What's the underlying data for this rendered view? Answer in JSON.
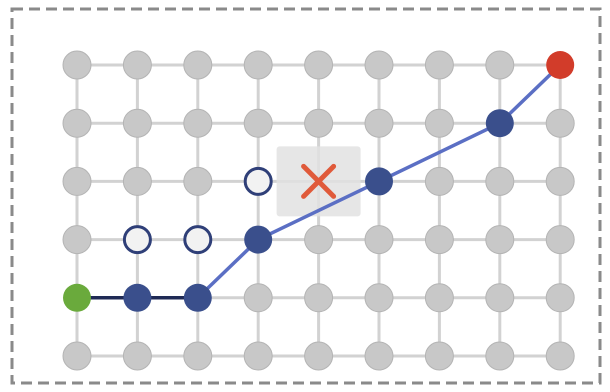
{
  "grid": {
    "columns": 9,
    "rows": 6
  },
  "colors": {
    "node_default": "#c8c8c8",
    "node_default_stroke": "#b4b4b4",
    "edge_default": "#d2d2d2",
    "path_node": "#3a4f8c",
    "path_edge": "#5b6fc4",
    "start_node": "#6aaa3c",
    "goal_node": "#d23c2a",
    "open_node_fill": "#f2f2f2",
    "open_node_stroke": "#2f3f78",
    "blocked_marker": "#e05a3a",
    "blocked_highlight": "#e2e2e2",
    "frame_dash": "#8a8a8a"
  },
  "nodes": {
    "start": {
      "col": 0,
      "row": 4
    },
    "goal": {
      "col": 8,
      "row": 0
    },
    "blocked": {
      "col": 4,
      "row": 2
    },
    "path": [
      {
        "col": 1,
        "row": 4
      },
      {
        "col": 2,
        "row": 4
      },
      {
        "col": 3,
        "row": 3
      },
      {
        "col": 5,
        "row": 2
      },
      {
        "col": 7,
        "row": 1
      }
    ],
    "open": [
      {
        "col": 1,
        "row": 3
      },
      {
        "col": 2,
        "row": 3
      },
      {
        "col": 3,
        "row": 2
      }
    ]
  },
  "route": [
    {
      "col": 0,
      "row": 4
    },
    {
      "col": 1,
      "row": 4
    },
    {
      "col": 2,
      "row": 4
    },
    {
      "col": 3,
      "row": 3
    },
    {
      "col": 5,
      "row": 2
    },
    {
      "col": 7,
      "row": 1
    },
    {
      "col": 8,
      "row": 0
    }
  ],
  "icons": {
    "blocked": "x-mark-icon"
  }
}
